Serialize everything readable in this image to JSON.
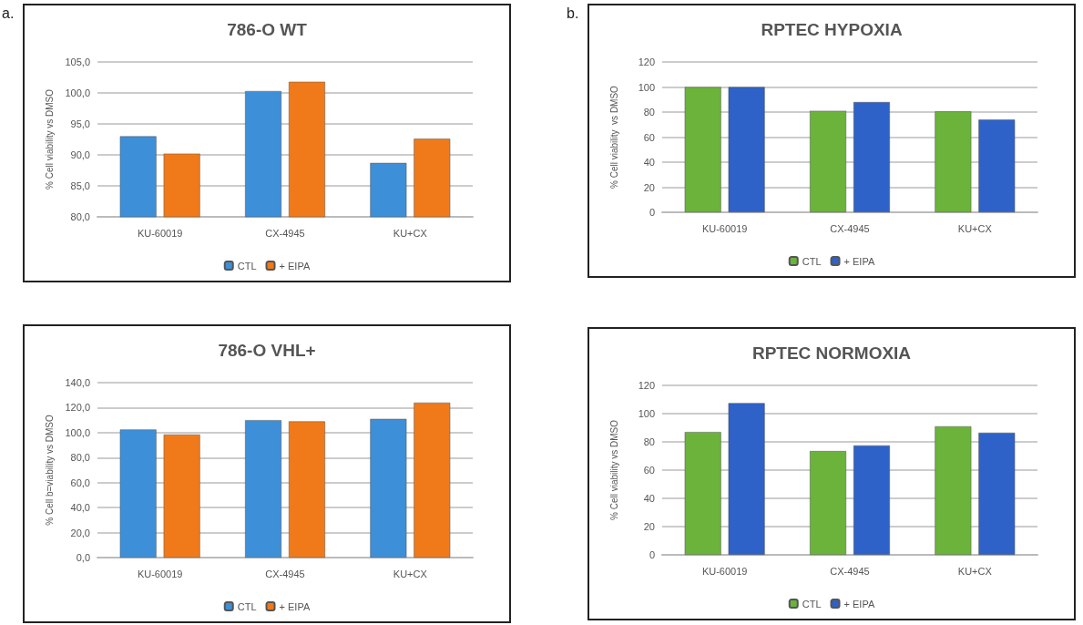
{
  "chart_data": [
    {
      "type": "bar",
      "title": "786-O WT",
      "ylabel": "% Cell viability vs DMSO",
      "annotations": [
        "a."
      ],
      "categories": [
        "KU-60019",
        "CX-4945",
        "KU+CX"
      ],
      "legend": "bottom",
      "grid": "y",
      "ylim": [
        80,
        105
      ],
      "yticks": [
        {
          "value": 80,
          "label": "80,0"
        },
        {
          "value": 85,
          "label": "85,0"
        },
        {
          "value": 90,
          "label": "90,0"
        },
        {
          "value": 95,
          "label": "95,0"
        },
        {
          "value": 100,
          "label": "100,0"
        },
        {
          "value": 105,
          "label": "105,0"
        }
      ],
      "series": [
        {
          "name": "CTL",
          "color": "#3d8fd8",
          "values": [
            93.0,
            100.3,
            88.7
          ]
        },
        {
          "name": "+ EIPA",
          "color": "#f07a1a",
          "values": [
            90.2,
            101.8,
            92.6
          ]
        }
      ]
    },
    {
      "type": "bar",
      "title": "RPTEC HYPOXIA",
      "ylabel": "% Cell viability  vs DMSO",
      "annotations": [
        "b."
      ],
      "categories": [
        "KU-60019",
        "CX-4945",
        "KU+CX"
      ],
      "legend": "bottom",
      "grid": "y",
      "ylim": [
        0,
        120
      ],
      "yticks": [
        0,
        20,
        40,
        60,
        80,
        100,
        120
      ],
      "series": [
        {
          "name": "CTL",
          "color": "#6bb33a",
          "values": [
            100,
            81,
            80.5
          ]
        },
        {
          "name": "+ EIPA",
          "color": "#2e62c8",
          "values": [
            100,
            88,
            74
          ]
        }
      ]
    },
    {
      "type": "bar",
      "title": "786-O VHL+",
      "ylabel": "% Cell b=viability vs DMSO",
      "categories": [
        "KU-60019",
        "CX-4945",
        "KU+CX"
      ],
      "legend": "bottom",
      "grid": "y",
      "ylim": [
        0,
        140
      ],
      "yticks": [
        {
          "value": 0,
          "label": "0,0"
        },
        {
          "value": 20,
          "label": "20,0"
        },
        {
          "value": 40,
          "label": "40,0"
        },
        {
          "value": 60,
          "label": "60,0"
        },
        {
          "value": 80,
          "label": "80,0"
        },
        {
          "value": 100,
          "label": "100,0"
        },
        {
          "value": 120,
          "label": "120,0"
        },
        {
          "value": 140,
          "label": "140,0"
        }
      ],
      "series": [
        {
          "name": "CTL",
          "color": "#3d8fd8",
          "values": [
            102.5,
            110,
            111
          ]
        },
        {
          "name": "+ EIPA",
          "color": "#f07a1a",
          "values": [
            98.5,
            109,
            124
          ]
        }
      ]
    },
    {
      "type": "bar",
      "title": "RPTEC NORMOXIA",
      "ylabel": "% Cell viability vs DMSO",
      "categories": [
        "KU-60019",
        "CX-4945",
        "KU+CX"
      ],
      "legend": "bottom",
      "grid": "y",
      "ylim": [
        0,
        120
      ],
      "yticks": [
        0,
        20,
        40,
        60,
        80,
        100,
        120
      ],
      "series": [
        {
          "name": "CTL",
          "color": "#6bb33a",
          "values": [
            87,
            73.5,
            91
          ]
        },
        {
          "name": "+ EIPA",
          "color": "#2e62c8",
          "values": [
            107.5,
            77.5,
            86.5
          ]
        }
      ]
    }
  ]
}
